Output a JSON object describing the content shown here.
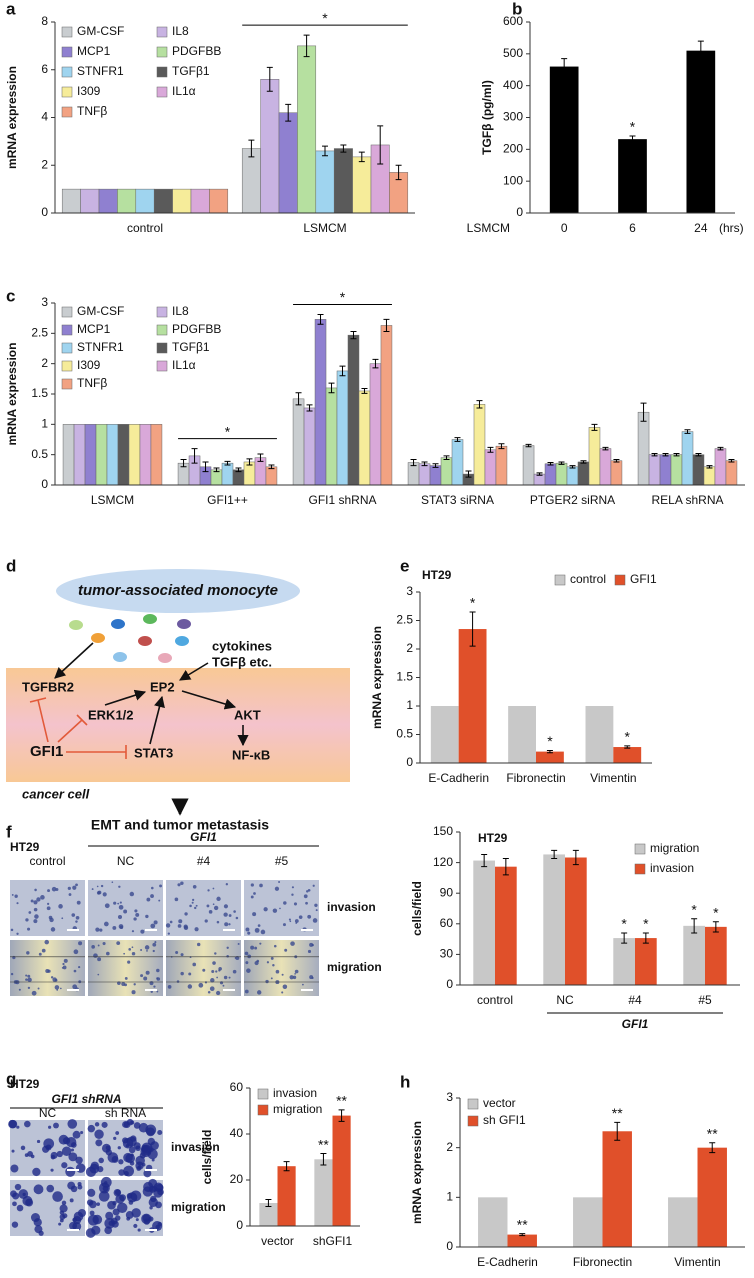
{
  "chart_data": [
    {
      "type": "bar",
      "panel": "a",
      "ylabel": "mRNA expression",
      "categories": [
        "control",
        "LSMCM"
      ],
      "ylim": [
        0,
        8
      ],
      "yticks": [
        0,
        2,
        4,
        6,
        8
      ],
      "series": [
        {
          "name": "GM-CSF",
          "color": "#c9cdd0",
          "values": [
            1,
            2.7
          ],
          "errors": [
            null,
            0.35
          ]
        },
        {
          "name": "IL8",
          "color": "#c8b3e2",
          "values": [
            1,
            5.6
          ],
          "errors": [
            null,
            0.5
          ]
        },
        {
          "name": "MCP1",
          "color": "#8f80d0",
          "values": [
            1,
            4.2
          ],
          "errors": [
            null,
            0.35
          ]
        },
        {
          "name": "PDGFBB",
          "color": "#b6e0a0",
          "values": [
            1,
            7.0
          ],
          "errors": [
            null,
            0.45
          ]
        },
        {
          "name": "STNFR1",
          "color": "#9fd4ef",
          "values": [
            1,
            2.6
          ],
          "errors": [
            null,
            0.2
          ]
        },
        {
          "name": "TGFβ1",
          "color": "#5a5a5a",
          "values": [
            1,
            2.7
          ],
          "errors": [
            null,
            0.15
          ]
        },
        {
          "name": "I309",
          "color": "#f6ec9a",
          "values": [
            1,
            2.35
          ],
          "errors": [
            null,
            0.2
          ]
        },
        {
          "name": "IL1α",
          "color": "#d9a8d9",
          "values": [
            1,
            2.85
          ],
          "errors": [
            null,
            0.8
          ]
        },
        {
          "name": "TNFβ",
          "color": "#f2a282",
          "values": [
            1,
            1.7
          ],
          "errors": [
            null,
            0.3
          ]
        }
      ],
      "group_annotations": [
        {
          "text": "*",
          "category": "LSMCM"
        }
      ]
    },
    {
      "type": "bar",
      "panel": "b",
      "ylabel": "TGFβ (pg/ml)",
      "xlabel_left": "LSMCM",
      "xlabel_right": "(hrs)",
      "categories": [
        "0",
        "6",
        "24"
      ],
      "values": [
        460,
        232,
        510
      ],
      "errors": [
        25,
        10,
        30
      ],
      "significance": [
        null,
        "*",
        null
      ],
      "color": "#000000",
      "ylim": [
        0,
        600
      ],
      "yticks": [
        0,
        100,
        200,
        300,
        400,
        500,
        600
      ]
    },
    {
      "type": "bar",
      "panel": "c",
      "ylabel": "mRNA expression",
      "categories": [
        "LSMCM",
        "GFI1++",
        "GFI1 shRNA",
        "STAT3 siRNA",
        "PTGER2 siRNA",
        "RELA shRNA"
      ],
      "ylim": [
        0,
        3
      ],
      "yticks": [
        0,
        0.5,
        1,
        1.5,
        2,
        2.5,
        3
      ],
      "series": [
        {
          "name": "GM-CSF",
          "color": "#c9cdd0",
          "values": [
            1,
            0.36,
            1.42,
            0.37,
            0.65,
            1.2
          ],
          "errors": [
            null,
            0.06,
            0.1,
            0.05,
            0.02,
            0.15
          ]
        },
        {
          "name": "IL8",
          "color": "#c8b3e2",
          "values": [
            1,
            0.48,
            1.27,
            0.35,
            0.18,
            0.5
          ],
          "errors": [
            null,
            0.12,
            0.05,
            0.03,
            0.02,
            0.02
          ]
        },
        {
          "name": "MCP1",
          "color": "#8f80d0",
          "values": [
            1,
            0.3,
            2.73,
            0.32,
            0.35,
            0.5
          ],
          "errors": [
            null,
            0.08,
            0.08,
            0.03,
            0.02,
            0.02
          ]
        },
        {
          "name": "PDGFBB",
          "color": "#b6e0a0",
          "values": [
            1,
            0.25,
            1.6,
            0.45,
            0.36,
            0.5
          ],
          "errors": [
            null,
            0.03,
            0.08,
            0.03,
            0.02,
            0.02
          ]
        },
        {
          "name": "STNFR1",
          "color": "#9fd4ef",
          "values": [
            1,
            0.36,
            1.88,
            0.75,
            0.3,
            0.88
          ],
          "errors": [
            null,
            0.03,
            0.08,
            0.03,
            0.02,
            0.03
          ]
        },
        {
          "name": "TGFβ1",
          "color": "#5a5a5a",
          "values": [
            1,
            0.25,
            2.47,
            0.18,
            0.38,
            0.5
          ],
          "errors": [
            null,
            0.03,
            0.06,
            0.05,
            0.02,
            0.02
          ]
        },
        {
          "name": "I309",
          "color": "#f6ec9a",
          "values": [
            1,
            0.38,
            1.55,
            1.33,
            0.95,
            0.3
          ],
          "errors": [
            null,
            0.05,
            0.04,
            0.06,
            0.05,
            0.02
          ]
        },
        {
          "name": "IL1α",
          "color": "#d9a8d9",
          "values": [
            1,
            0.45,
            2.0,
            0.58,
            0.6,
            0.6
          ],
          "errors": [
            null,
            0.06,
            0.07,
            0.04,
            0.02,
            0.02
          ]
        },
        {
          "name": "TNFβ",
          "color": "#f2a282",
          "values": [
            1,
            0.3,
            2.63,
            0.64,
            0.4,
            0.4
          ],
          "errors": [
            null,
            0.03,
            0.1,
            0.04,
            0.02,
            0.02
          ]
        }
      ],
      "group_annotations": [
        {
          "text": "*",
          "category": "GFI1++"
        },
        {
          "text": "*",
          "category": "GFI1 shRNA"
        }
      ]
    },
    {
      "type": "bar",
      "panel": "e",
      "title": "HT29",
      "ylabel": "mRNA expression",
      "categories": [
        "E-Cadherin",
        "Fibronectin",
        "Vimentin"
      ],
      "ylim": [
        0,
        3
      ],
      "yticks": [
        0,
        0.5,
        1,
        1.5,
        2,
        2.5,
        3
      ],
      "series": [
        {
          "name": "control",
          "color": "#c8c8c8",
          "values": [
            1,
            1,
            1
          ],
          "errors": [
            null,
            null,
            null
          ]
        },
        {
          "name": "GFI1",
          "color": "#e0502a",
          "values": [
            2.35,
            0.2,
            0.28
          ],
          "errors": [
            0.3,
            0.02,
            0.02
          ],
          "significance": [
            "*",
            "*",
            "*"
          ]
        }
      ]
    },
    {
      "type": "bar",
      "title": "HT29",
      "ylabel": "cells/field",
      "categories": [
        "control",
        "NC",
        "#4",
        "#5"
      ],
      "ylim": [
        0,
        150
      ],
      "yticks": [
        0,
        30,
        60,
        90,
        120,
        150
      ],
      "xgroup": {
        "label": "GFI1",
        "from": "NC",
        "to": "#5"
      },
      "series": [
        {
          "name": "migration",
          "color": "#c8c8c8",
          "values": [
            122,
            128,
            46,
            58
          ],
          "errors": [
            6,
            4,
            5,
            7
          ],
          "significance": [
            null,
            null,
            "*",
            "*"
          ]
        },
        {
          "name": "invasion",
          "color": "#e0502a",
          "values": [
            116,
            125,
            46,
            57
          ],
          "errors": [
            8,
            7,
            5,
            5
          ],
          "significance": [
            null,
            null,
            "*",
            "*"
          ]
        }
      ]
    },
    {
      "type": "bar",
      "ylabel": "cells/field",
      "categories": [
        "vector",
        "shGFI1"
      ],
      "ylim": [
        0,
        60
      ],
      "yticks": [
        0,
        20,
        40,
        60
      ],
      "series": [
        {
          "name": "invasion",
          "color": "#c8c8c8",
          "values": [
            10,
            29
          ],
          "errors": [
            1.5,
            2.5
          ],
          "significance": [
            null,
            "**"
          ]
        },
        {
          "name": "migration",
          "color": "#e0502a",
          "values": [
            26,
            48
          ],
          "errors": [
            2,
            2.5
          ],
          "significance": [
            null,
            "**"
          ]
        }
      ]
    },
    {
      "type": "bar",
      "panel": "h",
      "ylabel": "mRNA expression",
      "categories": [
        "E-Cadherin",
        "Fibronectin",
        "Vimentin"
      ],
      "ylim": [
        0,
        3
      ],
      "yticks": [
        0,
        1,
        2,
        3
      ],
      "series": [
        {
          "name": "vector",
          "color": "#c8c8c8",
          "values": [
            1,
            1,
            1
          ],
          "errors": [
            null,
            null,
            null
          ]
        },
        {
          "name": "sh GFI1",
          "color": "#e0502a",
          "values": [
            0.25,
            2.33,
            2.0
          ],
          "errors": [
            0.02,
            0.18,
            0.1
          ],
          "significance": [
            "**",
            "**",
            "**"
          ]
        }
      ]
    }
  ],
  "diagram": {
    "panel": "d",
    "monocyte": "tumor-associated monocyte",
    "cytokines": "cytokines",
    "cytokines_line2": "TGFβ etc.",
    "tgfbr2": "TGFBR2",
    "ep2": "EP2",
    "erk": "ERK1/2",
    "akt": "AKT",
    "gfi1": "GFI1",
    "stat3": "STAT3",
    "nfkb": "NF-κB",
    "cell": "cancer cell",
    "outcome": "EMT and tumor metastasis"
  },
  "images_f": {
    "panel": "f",
    "title": "HT29",
    "group_label": "GFI1",
    "columns": [
      "control",
      "NC",
      "#4",
      "#5"
    ],
    "rows": [
      "invasion",
      "migration"
    ]
  },
  "images_g": {
    "panel": "g",
    "title": "HT29",
    "group_label": "GFI1 shRNA",
    "columns": [
      "NC",
      "sh RNA"
    ],
    "rows": [
      "invasion",
      "migration"
    ]
  }
}
